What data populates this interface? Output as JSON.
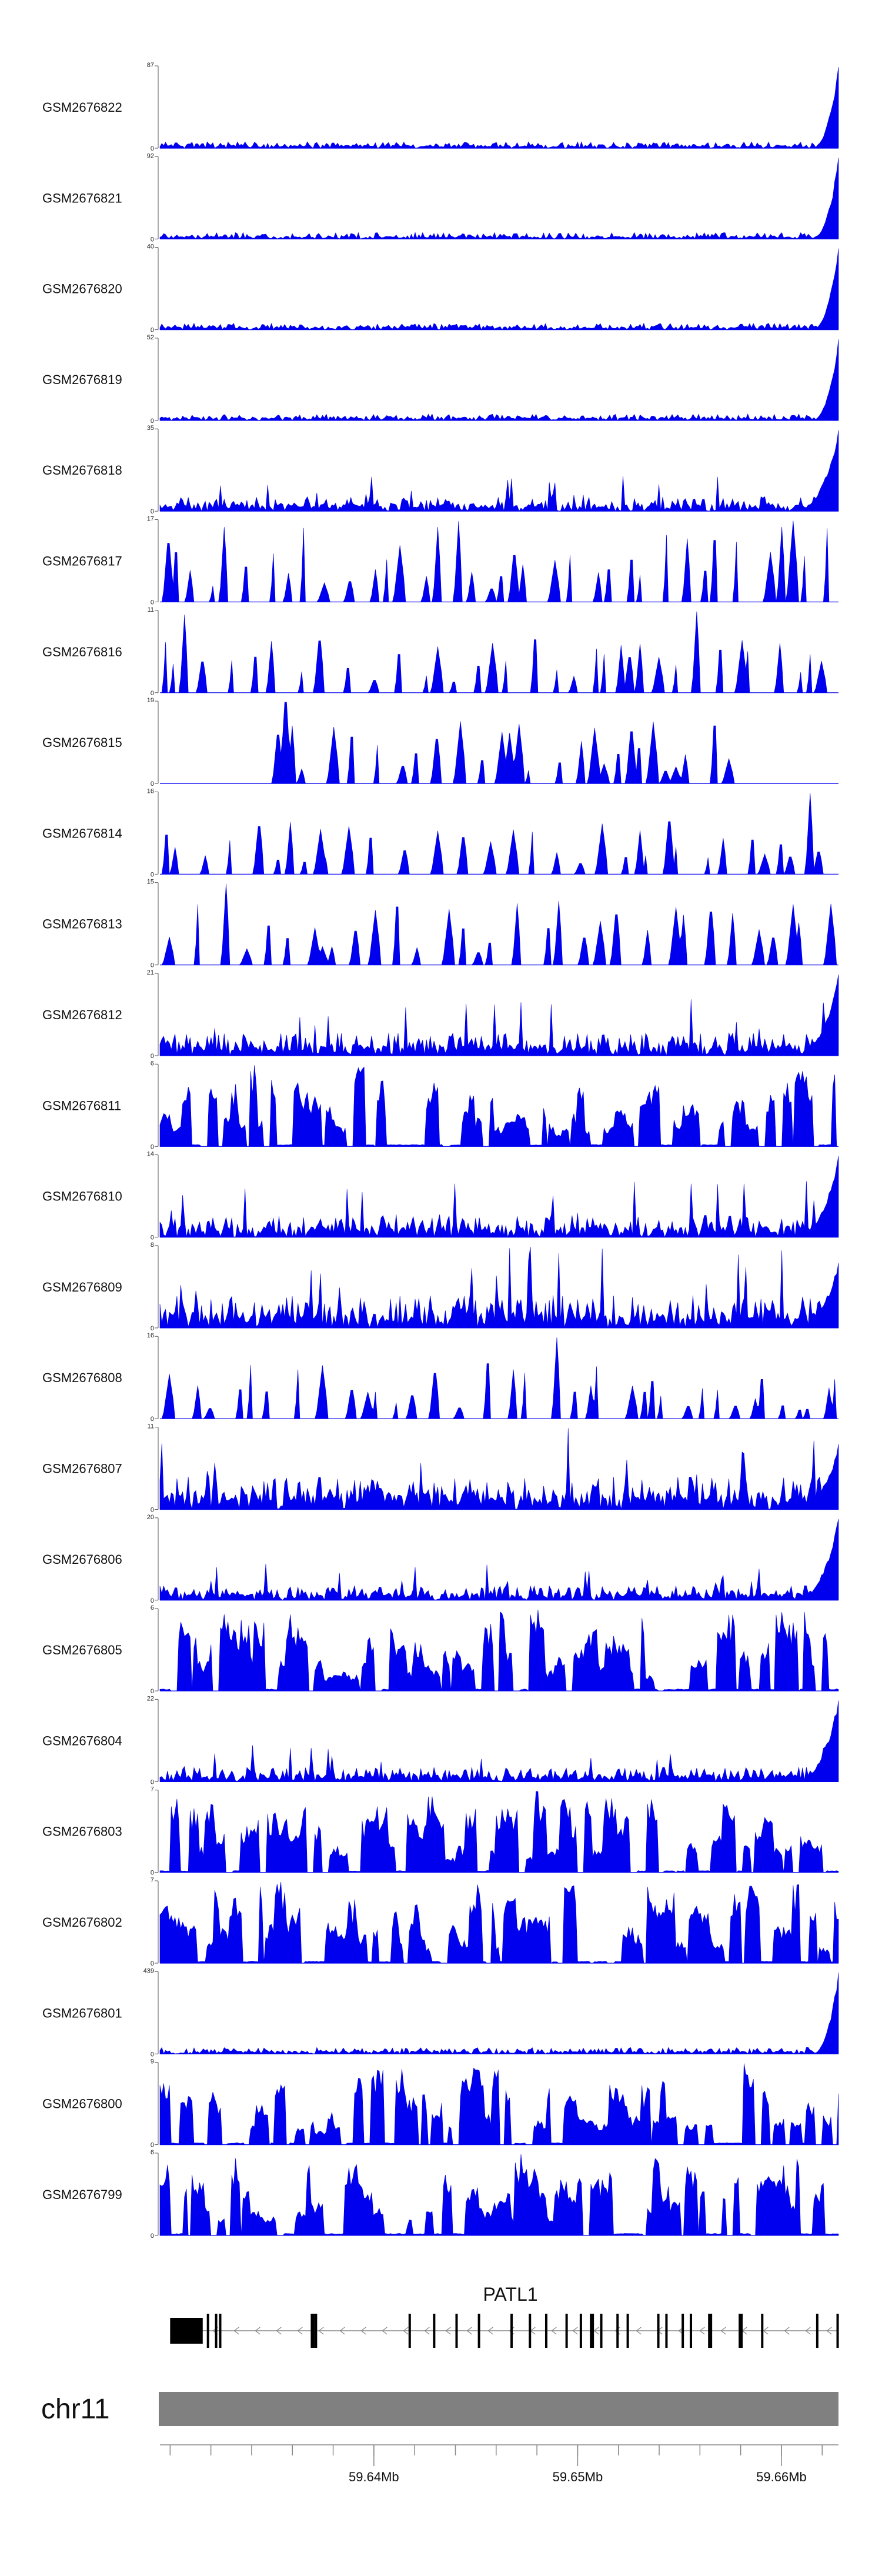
{
  "chart_data": {
    "type": "area",
    "fill_color": "#0000ee",
    "x_start_mb": 59.6295,
    "x_end_mb": 59.6628,
    "tracks": [
      {
        "name": "GSM2676822",
        "ymax": "87",
        "ymin": "0",
        "profile": "flat_end",
        "seed": 822
      },
      {
        "name": "GSM2676821",
        "ymax": "92",
        "ymin": "0",
        "profile": "flat_end",
        "seed": 821
      },
      {
        "name": "GSM2676820",
        "ymax": "40",
        "ymin": "0",
        "profile": "flat_end",
        "seed": 820
      },
      {
        "name": "GSM2676819",
        "ymax": "52",
        "ymin": "0",
        "profile": "flat_end",
        "seed": 819
      },
      {
        "name": "GSM2676818",
        "ymax": "35",
        "ymin": "0",
        "profile": "low_end",
        "seed": 818
      },
      {
        "name": "GSM2676817",
        "ymax": "17",
        "ymin": "0",
        "profile": "sparse",
        "seed": 817
      },
      {
        "name": "GSM2676816",
        "ymax": "11",
        "ymin": "0",
        "profile": "sparse",
        "seed": 816
      },
      {
        "name": "GSM2676815",
        "ymax": "19",
        "ymin": "0",
        "profile": "sparse_mid",
        "seed": 815
      },
      {
        "name": "GSM2676814",
        "ymax": "16",
        "ymin": "0",
        "profile": "sparse",
        "seed": 814
      },
      {
        "name": "GSM2676813",
        "ymax": "15",
        "ymin": "0",
        "profile": "sparse",
        "seed": 813
      },
      {
        "name": "GSM2676812",
        "ymax": "21",
        "ymin": "0",
        "profile": "medium_end",
        "seed": 812
      },
      {
        "name": "GSM2676811",
        "ymax": "6",
        "ymin": "0",
        "profile": "dense",
        "seed": 811
      },
      {
        "name": "GSM2676810",
        "ymax": "14",
        "ymin": "0",
        "profile": "medium_end",
        "seed": 810
      },
      {
        "name": "GSM2676809",
        "ymax": "8",
        "ymin": "0",
        "profile": "dense_end",
        "seed": 809
      },
      {
        "name": "GSM2676808",
        "ymax": "16",
        "ymin": "0",
        "profile": "sparse",
        "seed": 808
      },
      {
        "name": "GSM2676807",
        "ymax": "11",
        "ymin": "0",
        "profile": "dense_end",
        "seed": 807
      },
      {
        "name": "GSM2676806",
        "ymax": "20",
        "ymin": "0",
        "profile": "low_end",
        "seed": 806
      },
      {
        "name": "GSM2676805",
        "ymax": "6",
        "ymin": "0",
        "profile": "dense",
        "seed": 805
      },
      {
        "name": "GSM2676804",
        "ymax": "22",
        "ymin": "0",
        "profile": "low_end",
        "seed": 804
      },
      {
        "name": "GSM2676803",
        "ymax": "7",
        "ymin": "0",
        "profile": "dense",
        "seed": 803
      },
      {
        "name": "GSM2676802",
        "ymax": "7",
        "ymin": "0",
        "profile": "dense",
        "seed": 802
      },
      {
        "name": "GSM2676801",
        "ymax": "439",
        "ymin": "0",
        "profile": "flat_end",
        "seed": 801
      },
      {
        "name": "GSM2676800",
        "ymax": "9",
        "ymin": "0",
        "profile": "dense",
        "seed": 800
      },
      {
        "name": "GSM2676799",
        "ymax": "6",
        "ymin": "0",
        "profile": "dense",
        "seed": 799
      }
    ],
    "gene": {
      "name": "PATL1",
      "strand": "-",
      "start_mb": 59.63,
      "end_mb": 59.6628,
      "exons_mb": [
        [
          59.63,
          59.6316
        ],
        [
          59.6318,
          59.6319
        ],
        [
          59.6322,
          59.6323
        ],
        [
          59.6324,
          59.6325
        ],
        [
          59.6369,
          59.6371
        ],
        [
          59.6371,
          59.6372
        ],
        [
          59.6417,
          59.6418
        ],
        [
          59.6429,
          59.643
        ],
        [
          59.644,
          59.6441
        ],
        [
          59.6451,
          59.6452
        ],
        [
          59.6467,
          59.6468
        ],
        [
          59.6476,
          59.6477
        ],
        [
          59.6484,
          59.6485
        ],
        [
          59.6494,
          59.6495
        ],
        [
          59.6501,
          59.6502
        ],
        [
          59.6506,
          59.6508
        ],
        [
          59.6511,
          59.6512
        ],
        [
          59.6519,
          59.652
        ],
        [
          59.6524,
          59.6525
        ],
        [
          59.6539,
          59.654
        ],
        [
          59.6543,
          59.6544
        ],
        [
          59.6551,
          59.6552
        ],
        [
          59.6555,
          59.6556
        ],
        [
          59.6564,
          59.6566
        ],
        [
          59.6579,
          59.6581
        ],
        [
          59.659,
          59.6591
        ],
        [
          59.6617,
          59.6618
        ],
        [
          59.6627,
          59.6628
        ]
      ]
    },
    "chromosome": "chr11",
    "axis": {
      "minor_ticks_mb": [
        59.63,
        59.632,
        59.634,
        59.636,
        59.638,
        59.64,
        59.642,
        59.644,
        59.646,
        59.648,
        59.65,
        59.652,
        59.654,
        59.656,
        59.658,
        59.66,
        59.662
      ],
      "major_ticks": [
        {
          "value": 59.64,
          "label": "59.64Mb"
        },
        {
          "value": 59.65,
          "label": "59.65Mb"
        },
        {
          "value": 59.66,
          "label": "59.66Mb"
        }
      ]
    }
  }
}
